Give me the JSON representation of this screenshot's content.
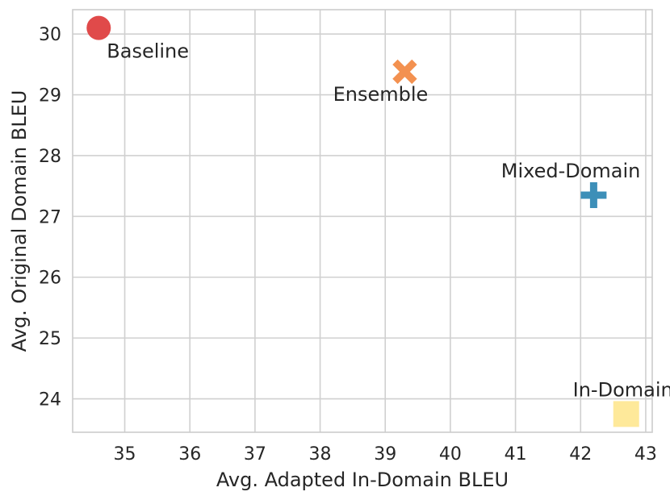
{
  "chart_data": {
    "type": "scatter",
    "title": "",
    "xlabel": "Avg. Adapted In-Domain BLEU",
    "ylabel": "Avg. Original Domain BLEU",
    "xlim": [
      34.2,
      43.1
    ],
    "ylim": [
      23.45,
      30.4
    ],
    "xticks": [
      35,
      36,
      37,
      38,
      39,
      40,
      41,
      42,
      43
    ],
    "yticks": [
      24,
      25,
      26,
      27,
      28,
      29,
      30
    ],
    "grid": true,
    "points": [
      {
        "label": "Baseline",
        "x": 34.6,
        "y": 30.1,
        "marker": "circle",
        "color": "#e04a4a",
        "label_pos": "below-right"
      },
      {
        "label": "Ensemble",
        "x": 39.3,
        "y": 29.38,
        "marker": "x",
        "color": "#f39150",
        "label_pos": "below"
      },
      {
        "label": "Mixed-Domain",
        "x": 42.2,
        "y": 27.35,
        "marker": "plus",
        "color": "#3d8fb8",
        "label_pos": "above-left"
      },
      {
        "label": "In-Domain",
        "x": 42.7,
        "y": 23.75,
        "marker": "square",
        "color": "#fee99a",
        "label_pos": "above-left"
      }
    ]
  }
}
